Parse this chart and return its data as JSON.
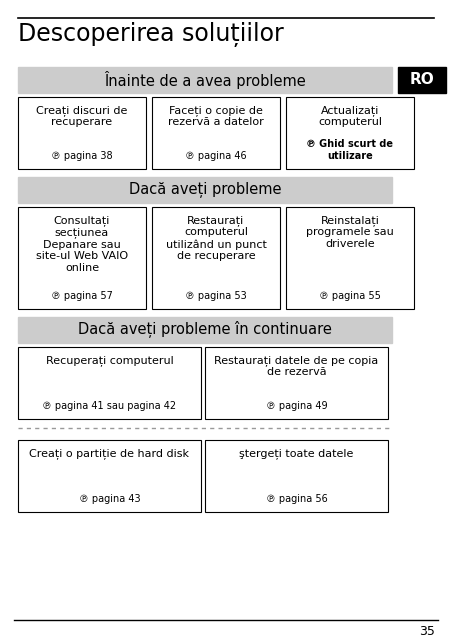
{
  "title": "Descoperirea soluțiilor",
  "page_number": "35",
  "ro_label": "RO",
  "section1_header": "Înainte de a avea probleme",
  "section1_boxes": [
    {
      "main": "Creați discuri de\nrecuperare",
      "ref": "℗ pagina 38",
      "bold_ref": false
    },
    {
      "main": "Faceți o copie de\nrezervă a datelor",
      "ref": "℗ pagina 46",
      "bold_ref": false
    },
    {
      "main": "Actualizați\ncomputerul",
      "ref": "℗ Ghid scurt de\nutilizare",
      "bold_ref": true
    }
  ],
  "section2_header": "Dacă aveți probleme",
  "section2_boxes": [
    {
      "main": "Consultați\nsecțiunea\nDepanare sau\nsite-ul Web VAIO\nonline",
      "ref": "℗ pagina 57",
      "bold_ref": false
    },
    {
      "main": "Restaurați\ncomputerul\nutilizând un punct\nde recuperare",
      "ref": "℗ pagina 53",
      "bold_ref": false
    },
    {
      "main": "Reinstalați\nprogramele sau\ndriverele",
      "ref": "℗ pagina 55",
      "bold_ref": false
    }
  ],
  "section3_header": "Dacă aveți probleme în continuare",
  "section3_boxes": [
    {
      "main": "Recuperați computerul",
      "ref": "℗ pagina 41 sau pagina 42",
      "bold_ref": false
    },
    {
      "main": "Restaurați datele de pe copia\nde rezervă",
      "ref": "℗ pagina 49",
      "bold_ref": false
    }
  ],
  "section4_boxes": [
    {
      "main": "Creați o partiție de hard disk",
      "ref": "℗ pagina 43",
      "bold_ref": false
    },
    {
      "main": "ştergeți toate datele",
      "ref": "℗ pagina 56",
      "bold_ref": false
    }
  ],
  "bg_color": "#ffffff",
  "header_bg": "#cccccc",
  "box_border": "#000000",
  "text_color": "#000000",
  "ro_bg": "#000000",
  "ro_fg": "#ffffff"
}
